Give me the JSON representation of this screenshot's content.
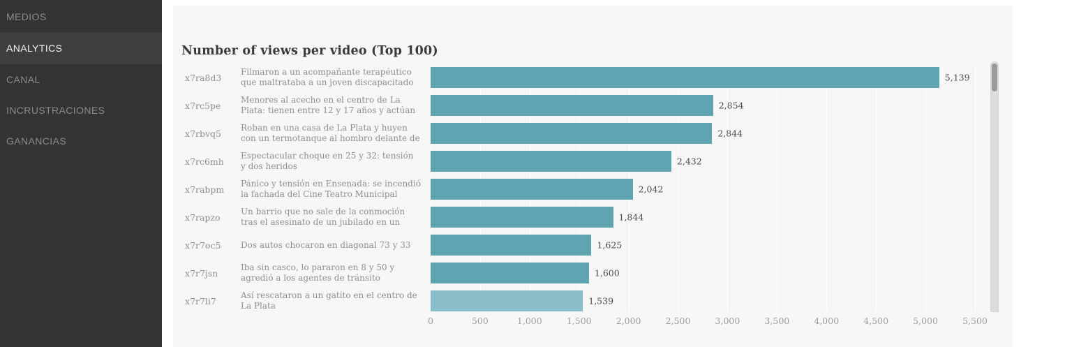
{
  "sidebar": {
    "items": [
      {
        "label": "MEDIOS",
        "active": false
      },
      {
        "label": "ANALYTICS",
        "active": true
      },
      {
        "label": "CANAL",
        "active": false
      },
      {
        "label": "INCRUSTRACIONES",
        "active": false
      },
      {
        "label": "GANANCIAS",
        "active": false
      }
    ]
  },
  "main": {
    "title": "Number of views per video (Top 100)"
  },
  "chart_data": {
    "type": "bar",
    "orientation": "horizontal",
    "title": "Number of views per video (Top 100)",
    "rows": [
      {
        "id": "x7ra8d3",
        "label": "Filmaron a un acompañante terapéutico que maltrataba a un joven discapacitado",
        "value": 5139,
        "value_label": "5,139"
      },
      {
        "id": "x7rc5pe",
        "label": "Menores al acecho en el centro de La Plata: tienen entre 12 y 17 años y actúan armados",
        "value": 2854,
        "value_label": "2,854"
      },
      {
        "id": "x7rbvq5",
        "label": "Roban en una casa de La Plata y huyen con un termotanque al hombro delante de los policías",
        "value": 2844,
        "value_label": "2,844"
      },
      {
        "id": "x7rc6mh",
        "label": "Espectacular choque en 25 y 32: tensión y dos heridos",
        "value": 2432,
        "value_label": "2,432"
      },
      {
        "id": "x7rabpm",
        "label": "Pánico y tensión en Ensenada: se incendió la fachada del Cine Teatro Municipal",
        "value": 2042,
        "value_label": "2,042"
      },
      {
        "id": "x7rapzo",
        "label": "Un barrio que no sale de la conmoción tras el asesinato de un jubilado en un asalto",
        "value": 1844,
        "value_label": "1,844"
      },
      {
        "id": "x7r7oc5",
        "label": "Dos autos chocaron en diagonal 73 y 33",
        "value": 1625,
        "value_label": "1,625"
      },
      {
        "id": "x7r7jsn",
        "label": "Iba sin casco, lo pararon en 8 y 50 y agredió a los agentes de tránsito",
        "value": 1600,
        "value_label": "1,600"
      },
      {
        "id": "x7r7li7",
        "label": "Así rescataron a un gatito en el centro de La Plata",
        "value": 1539,
        "value_label": "1,539",
        "highlight": true
      }
    ],
    "xlim": [
      0,
      5500
    ],
    "x_ticks": [
      {
        "value": 0,
        "label": "0"
      },
      {
        "value": 500,
        "label": "500"
      },
      {
        "value": 1000,
        "label": "1,000"
      },
      {
        "value": 1500,
        "label": "1,500"
      },
      {
        "value": 2000,
        "label": "2,000"
      },
      {
        "value": 2500,
        "label": "2,500"
      },
      {
        "value": 3000,
        "label": "3,000"
      },
      {
        "value": 3500,
        "label": "3,500"
      },
      {
        "value": 4000,
        "label": "4,000"
      },
      {
        "value": 4500,
        "label": "4,500"
      },
      {
        "value": 5000,
        "label": "5,000"
      },
      {
        "value": 5500,
        "label": "5,500"
      }
    ],
    "grid": true,
    "legend": null,
    "colors": {
      "bar": "#5fa4b1",
      "bar_highlight": "#8abecb",
      "sidebar_bg": "#333333",
      "sidebar_active_bg": "#3e3e3e",
      "panel_bg": "#f7f7f7",
      "value_text": "#4c4c4c",
      "muted_text": "#8f8f8f",
      "tick_text": "#9c9c9c"
    }
  }
}
